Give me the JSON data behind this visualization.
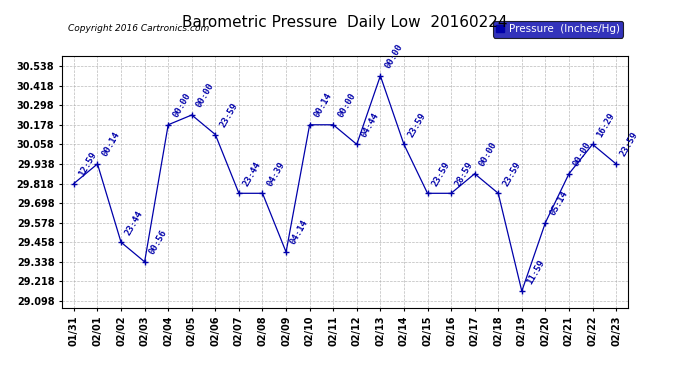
{
  "title": "Barometric Pressure  Daily Low  20160224",
  "copyright": "Copyright 2016 Cartronics.com",
  "legend_label": "Pressure  (Inches/Hg)",
  "background_color": "#ffffff",
  "plot_bg_color": "#ffffff",
  "line_color": "#0000aa",
  "grid_color": "#aaaaaa",
  "ylim_min": 29.058,
  "ylim_max": 30.598,
  "yticks": [
    29.098,
    29.218,
    29.338,
    29.458,
    29.578,
    29.698,
    29.818,
    29.938,
    30.058,
    30.178,
    30.298,
    30.418,
    30.538
  ],
  "dates": [
    "01/31",
    "02/01",
    "02/02",
    "02/03",
    "02/04",
    "02/05",
    "02/06",
    "02/07",
    "02/08",
    "02/09",
    "02/10",
    "02/11",
    "02/12",
    "02/13",
    "02/14",
    "02/15",
    "02/16",
    "02/17",
    "02/18",
    "02/19",
    "02/20",
    "02/21",
    "02/22",
    "02/23"
  ],
  "values": [
    29.818,
    29.938,
    29.458,
    29.338,
    30.178,
    30.238,
    30.118,
    29.758,
    29.758,
    29.398,
    30.178,
    30.178,
    30.058,
    30.478,
    30.058,
    29.758,
    29.758,
    29.878,
    29.758,
    29.158,
    29.578,
    29.878,
    30.058,
    29.938
  ],
  "annotations": [
    "12:59",
    "00:14",
    "23:44",
    "00:56",
    "00:00",
    "00:00",
    "23:59",
    "23:44",
    "04:39",
    "04:14",
    "00:14",
    "00:00",
    "04:44",
    "00:00",
    "23:59",
    "23:59",
    "28:59",
    "00:00",
    "23:59",
    "11:59",
    "05:14",
    "00:00",
    "16:29",
    "23:59"
  ],
  "title_fontsize": 11,
  "tick_fontsize": 7,
  "annotation_fontsize": 6.5,
  "legend_fontsize": 7.5
}
